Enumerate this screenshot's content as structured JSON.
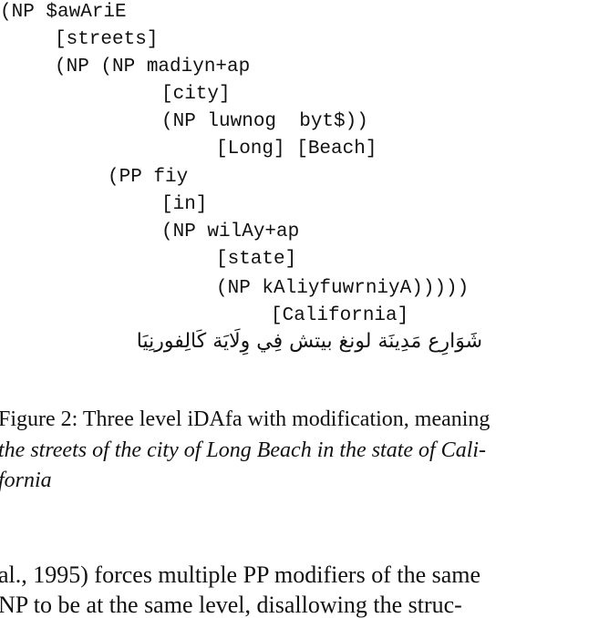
{
  "tree_lines": [
    "(NP $awAriE",
    "[streets]",
    "(NP (NP madiyn+ap",
    "[city]",
    "(NP luwnog  byt$))",
    "[Long] [Beach]",
    "(PP fiy",
    "[in]",
    "(NP wilAy+ap",
    "[state]",
    "(NP kAliyfuwrniyA)))))",
    "[California]"
  ],
  "arabic_text": "شَوَارِع مَدِينَة لونغ بيتش فِي وِلَايَة كَالِفورنِيَا",
  "caption": {
    "line1": "Figure 2: Three level iDAfa with modification, meaning",
    "line2": "the streets of the city of Long Beach in the state of Cali-",
    "line3": "fornia"
  },
  "body_text": {
    "line1": "al., 1995) forces multiple PP modifiers of the same",
    "line2": "NP to be at the same level, disallowing the struc-"
  }
}
